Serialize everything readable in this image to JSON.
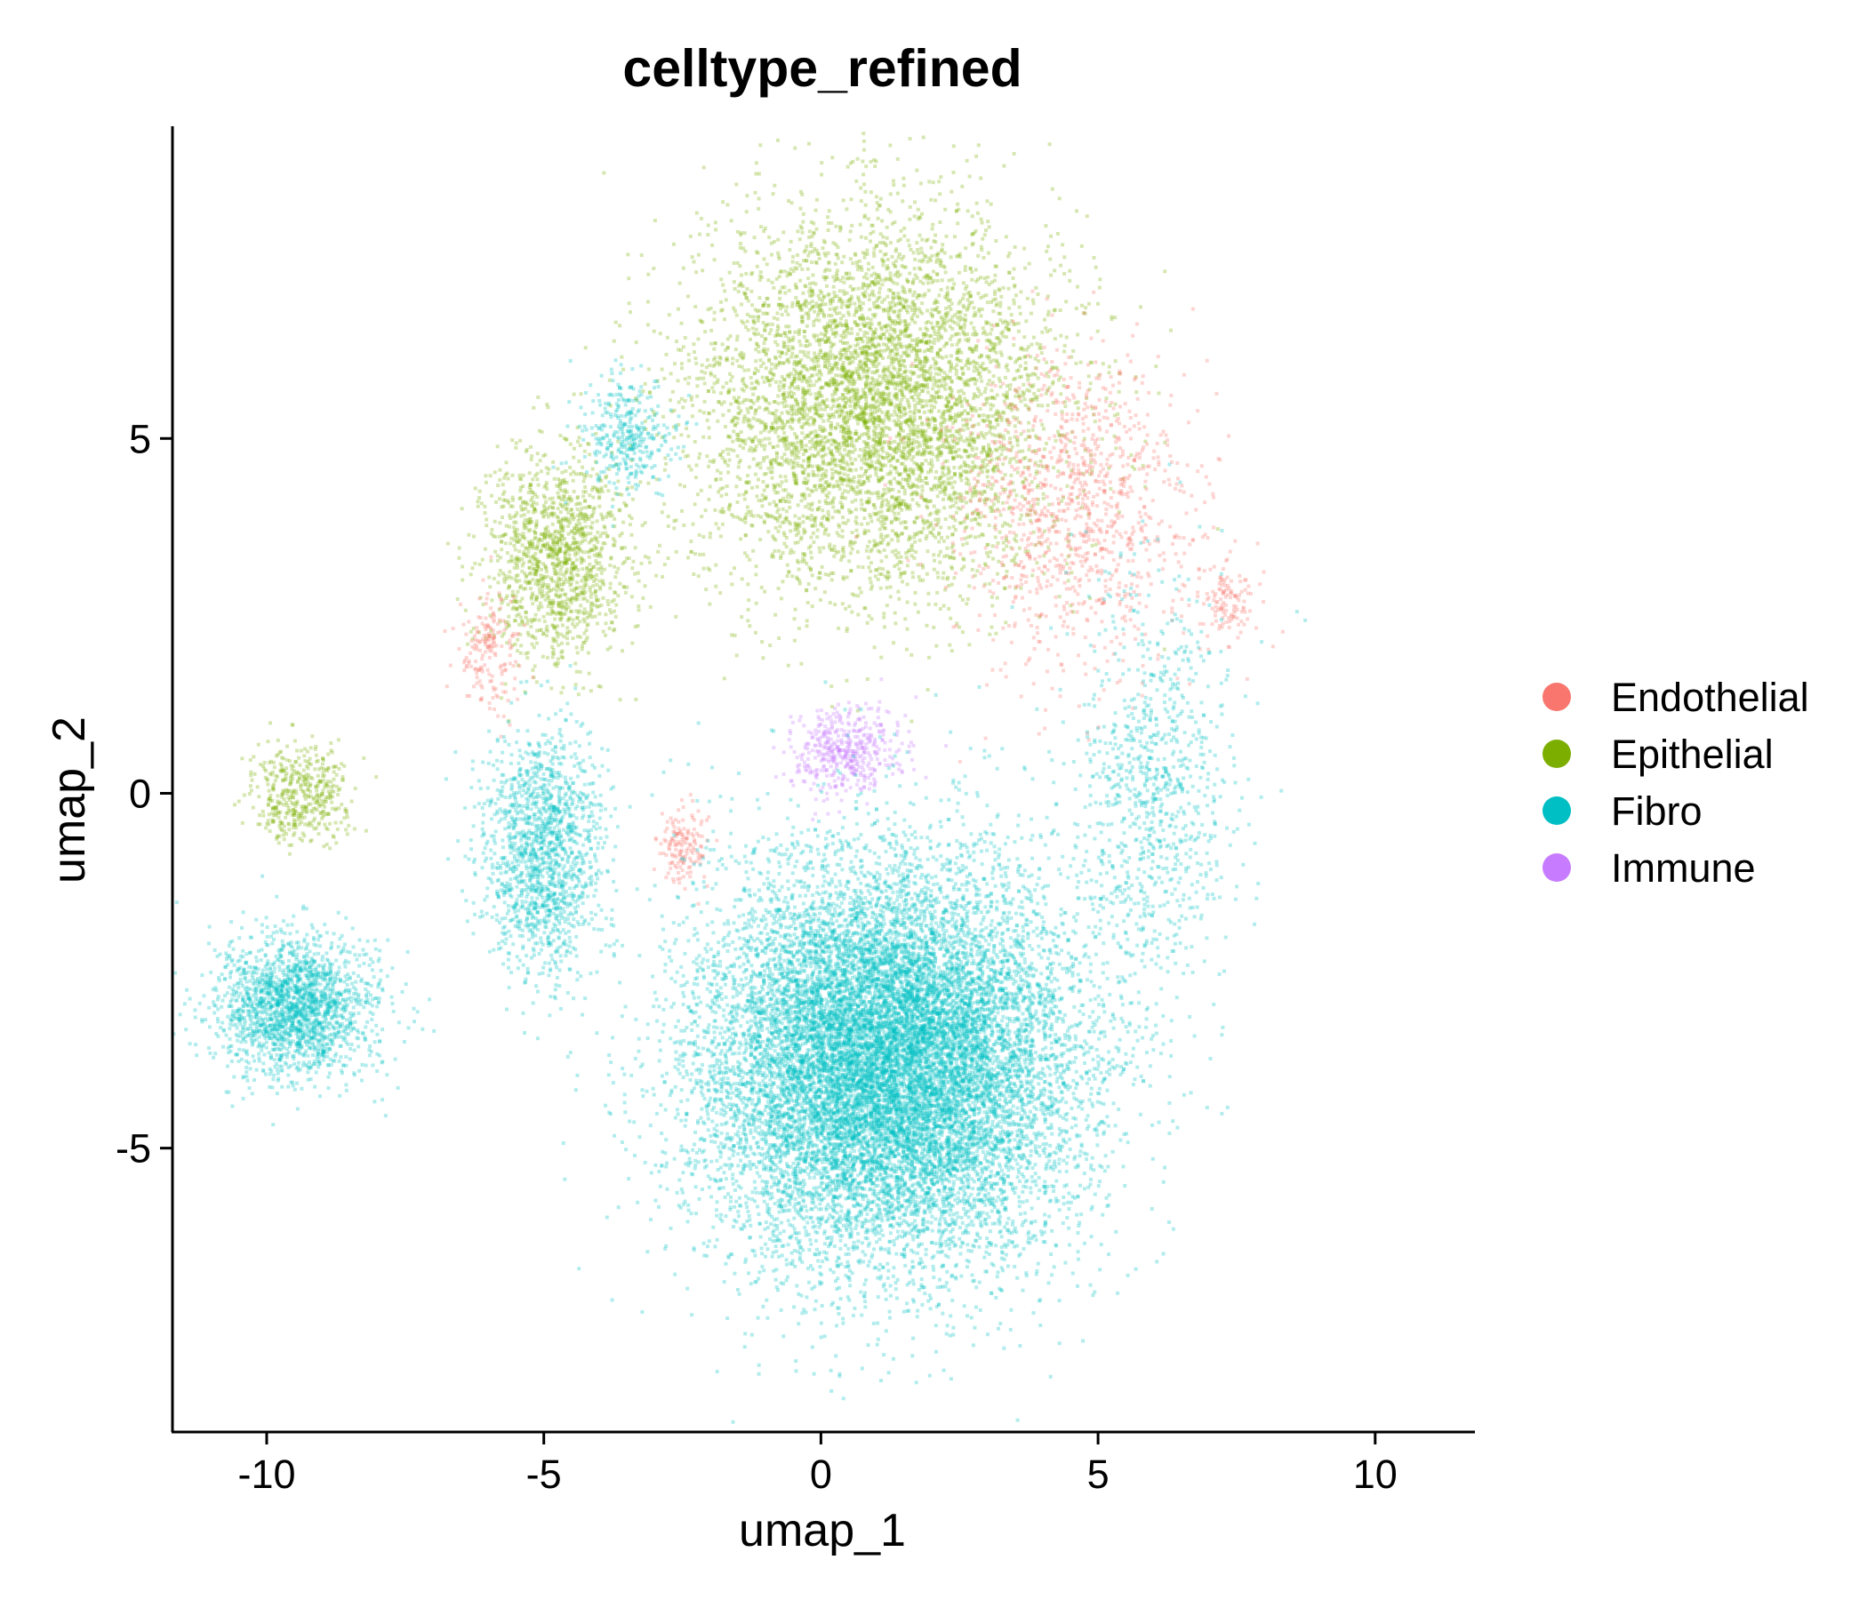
{
  "chart_data": {
    "type": "scatter",
    "title": "celltype_refined",
    "xlabel": "umap_1",
    "ylabel": "umap_2",
    "xlim": [
      -11.7,
      11.8
    ],
    "ylim": [
      -9.0,
      9.4
    ],
    "x_ticks": [
      -10,
      -5,
      0,
      5,
      10
    ],
    "y_ticks": [
      -5,
      0,
      5
    ],
    "x_tick_labels": [
      "-10",
      "-5",
      "0",
      "5",
      "10"
    ],
    "y_tick_labels": [
      "-5",
      "0",
      "5"
    ],
    "grid": false,
    "legend_position": "right",
    "point_alpha": 0.3,
    "series": [
      {
        "name": "Endothelial",
        "color": "#F8766D"
      },
      {
        "name": "Epithelial",
        "color": "#7CAE00"
      },
      {
        "name": "Fibro",
        "color": "#00BFC4"
      },
      {
        "name": "Immune",
        "color": "#C77CFF"
      }
    ],
    "clusters": [
      {
        "series": "Epithelial",
        "center": [
          1.0,
          5.5
        ],
        "spread": [
          3.0,
          2.4
        ],
        "n": 5500
      },
      {
        "series": "Epithelial",
        "center": [
          -4.8,
          3.3
        ],
        "spread": [
          1.2,
          1.3
        ],
        "n": 1300
      },
      {
        "series": "Epithelial",
        "center": [
          -9.4,
          0.0
        ],
        "spread": [
          0.8,
          0.6
        ],
        "n": 450
      },
      {
        "series": "Endothelial",
        "center": [
          4.5,
          4.0
        ],
        "spread": [
          2.0,
          2.0
        ],
        "n": 1100
      },
      {
        "series": "Endothelial",
        "center": [
          7.3,
          2.7
        ],
        "spread": [
          0.5,
          0.5
        ],
        "n": 120
      },
      {
        "series": "Endothelial",
        "center": [
          -2.5,
          -0.8
        ],
        "spread": [
          0.4,
          0.5
        ],
        "n": 150
      },
      {
        "series": "Endothelial",
        "center": [
          -6.0,
          2.0
        ],
        "spread": [
          0.5,
          0.8
        ],
        "n": 180
      },
      {
        "series": "Immune",
        "center": [
          0.4,
          0.6
        ],
        "spread": [
          0.9,
          0.6
        ],
        "n": 450
      },
      {
        "series": "Fibro",
        "center": [
          1.2,
          -3.8
        ],
        "spread": [
          3.0,
          2.5
        ],
        "n": 15000
      },
      {
        "series": "Fibro",
        "center": [
          -9.5,
          -3.0
        ],
        "spread": [
          1.3,
          0.9
        ],
        "n": 1900
      },
      {
        "series": "Fibro",
        "center": [
          -5.0,
          -0.8
        ],
        "spread": [
          1.0,
          1.6
        ],
        "n": 1500
      },
      {
        "series": "Fibro",
        "center": [
          -3.5,
          5.0
        ],
        "spread": [
          0.8,
          0.7
        ],
        "n": 350
      },
      {
        "series": "Fibro",
        "center": [
          6.0,
          0.0
        ],
        "spread": [
          1.3,
          2.6
        ],
        "n": 900
      }
    ]
  }
}
